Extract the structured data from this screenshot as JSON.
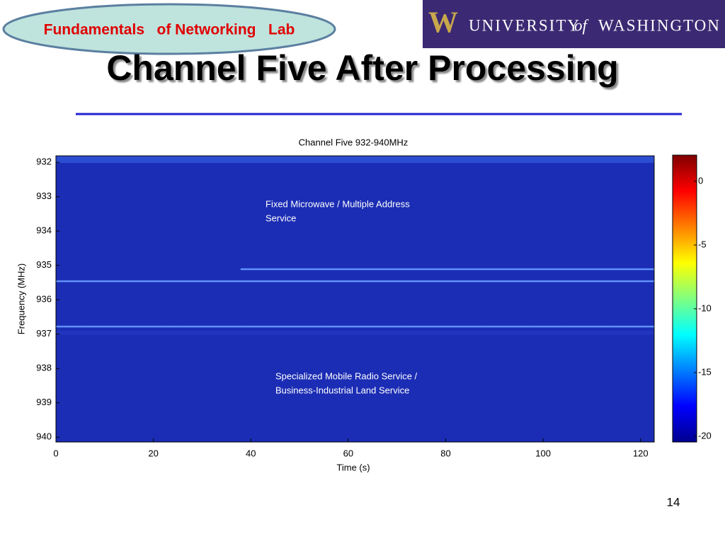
{
  "header": {
    "lab": "Fundamentals   of Networking   Lab",
    "title": "Channel Five After Processing",
    "page_number": "14"
  },
  "logo": {
    "mark": "W",
    "university": "UNIVERSITY",
    "of": "of",
    "washington": "WASHINGTON"
  },
  "chart_data": {
    "type": "spectrogram",
    "title": "Channel Five 932-940MHz",
    "x_label": "Time (s)",
    "y_label": "Frequency (MHz)",
    "xlim": [
      0,
      122.8
    ],
    "xticks": [
      0,
      20,
      40,
      60,
      80,
      100,
      120
    ],
    "ylim": [
      940.14,
      931.81
    ],
    "yticks": [
      932,
      933,
      934,
      935,
      936,
      937,
      938,
      939,
      940
    ],
    "clim": [
      -20.45,
      2.05
    ],
    "cticks": [
      0,
      -5,
      -10,
      -15,
      -20
    ],
    "signals": [
      {
        "frequency": 935.11,
        "start": 37.9
      },
      {
        "frequency": 935.46,
        "start": 0
      },
      {
        "frequency": 936.78,
        "start": 0
      }
    ],
    "annotations": [
      {
        "lines": [
          "Fixed Microwave / Multiple Address",
          "Service"
        ]
      },
      {
        "lines": [
          "Specialized Mobile Radio Service /",
          "Business-Industrial Land Service"
        ]
      }
    ]
  }
}
